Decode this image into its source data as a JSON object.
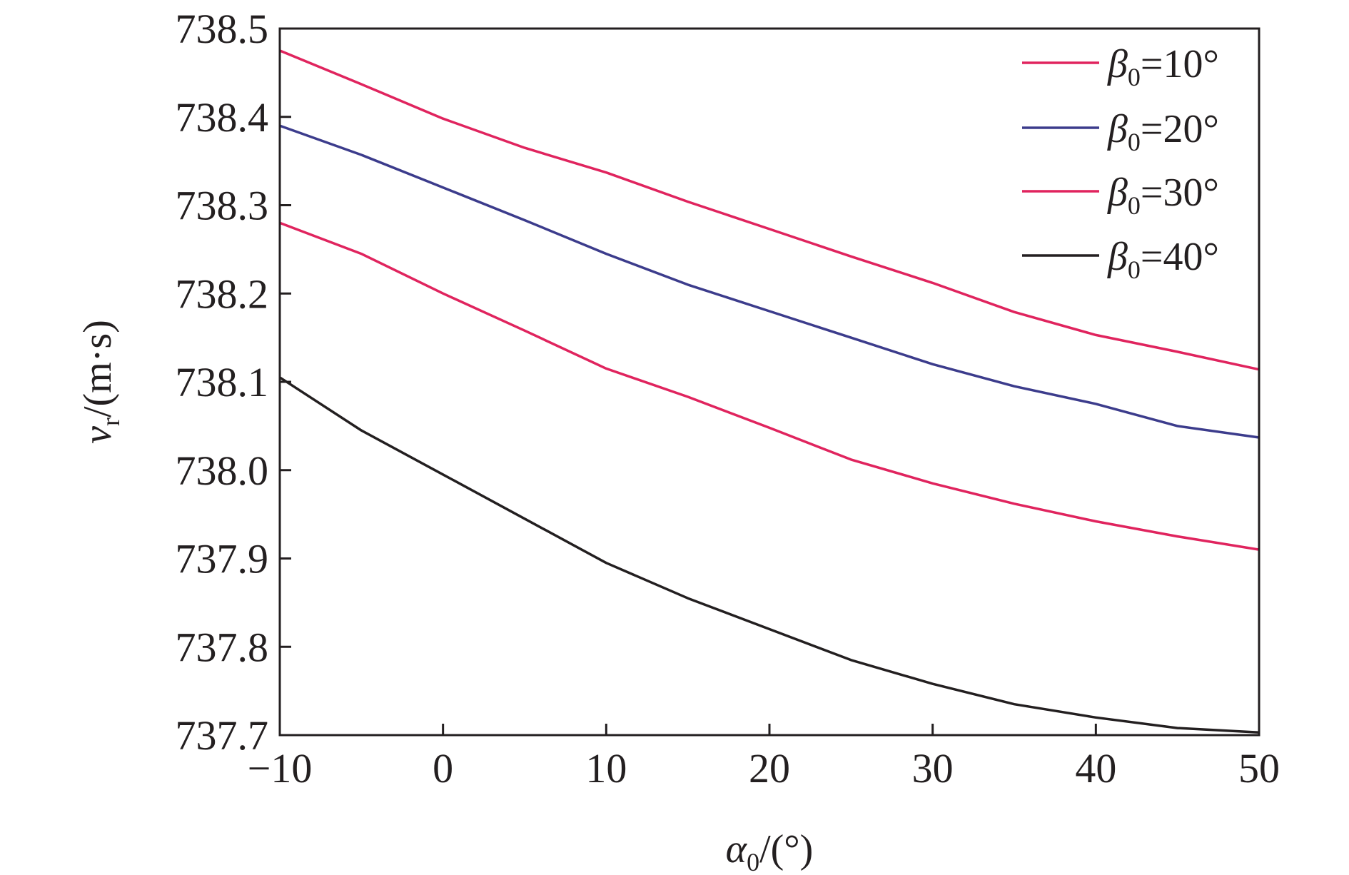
{
  "chart_data": {
    "type": "line",
    "title": "",
    "xlabel": {
      "symbol": "α",
      "subscript": "0",
      "unit": "/(°)"
    },
    "ylabel": {
      "symbol": "v",
      "subscript": "r",
      "unit": "/(m·s)"
    },
    "xlim": [
      -10,
      50
    ],
    "ylim": [
      737.7,
      738.5
    ],
    "xticks": [
      -10,
      0,
      10,
      20,
      30,
      40,
      50
    ],
    "xtick_labels": [
      "−10",
      "0",
      "10",
      "20",
      "30",
      "40",
      "50"
    ],
    "yticks": [
      737.7,
      737.8,
      737.9,
      738.0,
      738.1,
      738.2,
      738.3,
      738.4,
      738.5
    ],
    "ytick_labels": [
      "737.7",
      "737.8",
      "737.9",
      "738.0",
      "738.1",
      "738.2",
      "738.3",
      "738.4",
      "738.5"
    ],
    "grid": false,
    "legend_position": "top-right",
    "series": [
      {
        "legend": {
          "symbol": "β",
          "subscript": "0",
          "value": "=10°"
        },
        "color": "#e0245e",
        "x": [
          -10,
          -5,
          0,
          5,
          10,
          15,
          20,
          25,
          30,
          35,
          40,
          45,
          50
        ],
        "y": [
          738.475,
          738.437,
          738.398,
          738.365,
          738.337,
          738.304,
          738.273,
          738.242,
          738.212,
          738.179,
          738.153,
          738.134,
          738.114
        ]
      },
      {
        "legend": {
          "symbol": "β",
          "subscript": "0",
          "value": "=20°"
        },
        "color": "#3c3c8c",
        "x": [
          -10,
          -5,
          0,
          5,
          10,
          15,
          20,
          25,
          30,
          35,
          40,
          45,
          50
        ],
        "y": [
          738.39,
          738.357,
          738.32,
          738.283,
          738.245,
          738.21,
          738.18,
          738.15,
          738.12,
          738.095,
          738.075,
          738.05,
          738.037
        ]
      },
      {
        "legend": {
          "symbol": "β",
          "subscript": "0",
          "value": "=30°"
        },
        "color": "#e0245e",
        "x": [
          -10,
          -5,
          0,
          5,
          10,
          15,
          20,
          25,
          30,
          35,
          40,
          45,
          50
        ],
        "y": [
          738.28,
          738.245,
          738.2,
          738.158,
          738.115,
          738.083,
          738.048,
          738.012,
          737.985,
          737.962,
          737.942,
          737.925,
          737.91
        ]
      },
      {
        "legend": {
          "symbol": "β",
          "subscript": "0",
          "value": "=40°"
        },
        "color": "#231f20",
        "x": [
          -10,
          -5,
          0,
          5,
          10,
          15,
          20,
          25,
          30,
          35,
          40,
          45,
          50
        ],
        "y": [
          738.105,
          738.045,
          737.995,
          737.945,
          737.895,
          737.855,
          737.82,
          737.785,
          737.758,
          737.735,
          737.72,
          737.708,
          737.703
        ]
      }
    ]
  }
}
